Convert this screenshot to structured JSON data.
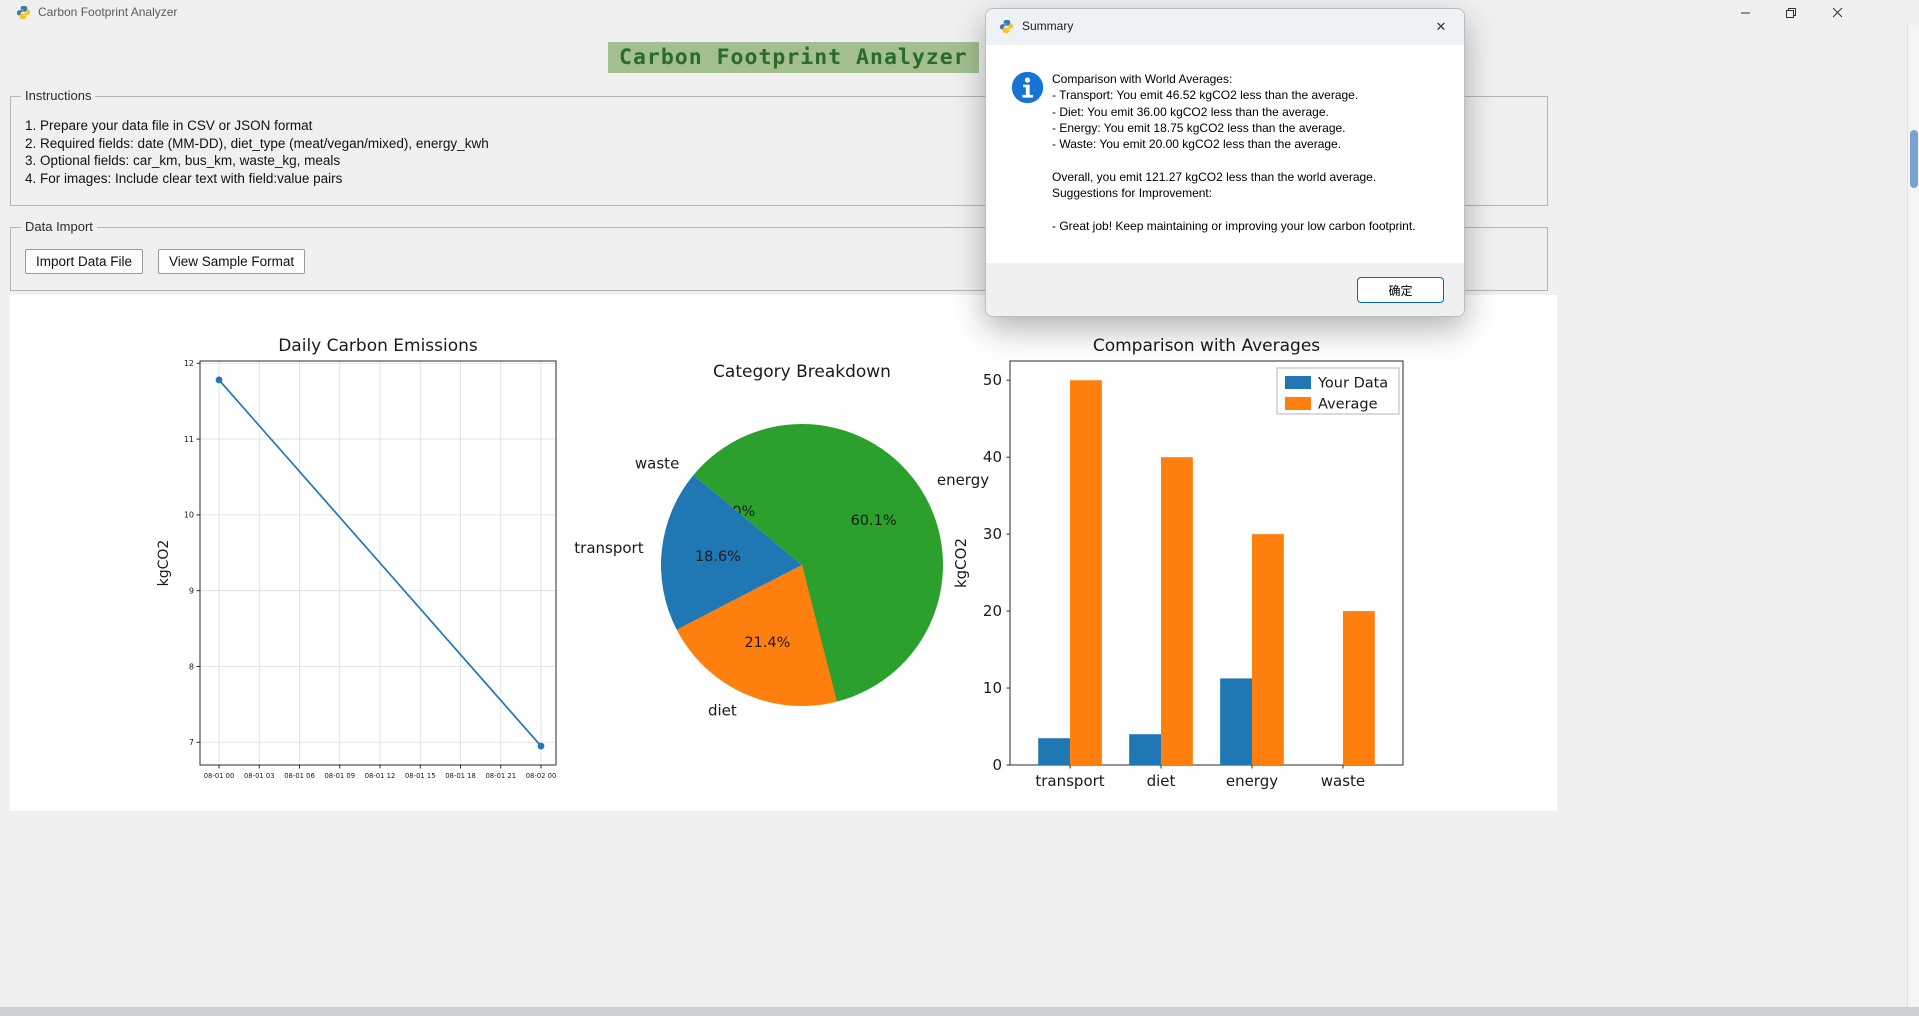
{
  "window": {
    "title": "Carbon Footprint Analyzer"
  },
  "icons": {
    "app": "python-icon",
    "window_controls": [
      "minimize-icon",
      "restore-icon",
      "close-icon"
    ],
    "dialog": "info-icon",
    "dialog_close_glyph": "✕"
  },
  "main": {
    "heading": "Carbon Footprint Analyzer",
    "instructions": {
      "label": "Instructions",
      "items": [
        "1. Prepare your data file in CSV or JSON format",
        "2. Required fields: date (MM-DD), diet_type (meat/vegan/mixed), energy_kwh",
        "3. Optional fields: car_km, bus_km, waste_kg, meals",
        "4. For images: Include clear text with field:value pairs"
      ]
    },
    "data_import": {
      "label": "Data Import",
      "import_button": "Import Data File",
      "sample_button": "View Sample Format"
    }
  },
  "dialog": {
    "title": "Summary",
    "close": "✕",
    "lines": [
      "Comparison with World Averages:",
      "- Transport: You emit 46.52 kgCO2 less than the average.",
      "- Diet: You emit 36.00 kgCO2 less than the average.",
      "- Energy: You emit 18.75 kgCO2 less than the average.",
      "- Waste: You emit 20.00 kgCO2 less than the average.",
      "",
      "Overall, you emit 121.27 kgCO2 less than the world average.",
      "Suggestions for Improvement:",
      "",
      "- Great job! Keep maintaining or improving your low carbon footprint."
    ],
    "ok_button": "确定"
  },
  "chart_data": [
    {
      "type": "line",
      "title": "Daily Carbon Emissions",
      "ylabel": "kgCO2",
      "x_ticks": [
        "08-01 00",
        "08-01 03",
        "08-01 06",
        "08-01 09",
        "08-01 12",
        "08-01 15",
        "08-01 18",
        "08-01 21",
        "08-02 00"
      ],
      "y_ticks": [
        7,
        8,
        9,
        10,
        11,
        12
      ],
      "ylim": [
        6.7,
        12.03
      ],
      "points": [
        {
          "x": "08-01 00",
          "y": 11.78
        },
        {
          "x": "08-02 00",
          "y": 6.95
        }
      ],
      "color": "#1f77b4",
      "grid": true
    },
    {
      "type": "pie",
      "title": "Category Breakdown",
      "start_angle": -76,
      "slices": [
        {
          "label": "energy",
          "pct": 60.1,
          "color": "#2ca02c"
        },
        {
          "label": "waste",
          "pct": 0.0,
          "color": "#d62728"
        },
        {
          "label": "transport",
          "pct": 18.6,
          "color": "#1f77b4"
        },
        {
          "label": "diet",
          "pct": 21.4,
          "color": "#ff7f0e"
        }
      ]
    },
    {
      "type": "bar",
      "title": "Comparison with Averages",
      "ylabel": "kgCO2",
      "categories": [
        "transport",
        "diet",
        "energy",
        "waste"
      ],
      "series": [
        {
          "name": "Your Data",
          "color": "#1f77b4",
          "values": [
            3.48,
            4.0,
            11.25,
            0.0
          ]
        },
        {
          "name": "Average",
          "color": "#ff7f0e",
          "values": [
            50,
            40,
            30,
            20
          ]
        }
      ],
      "y_ticks": [
        0,
        10,
        20,
        30,
        40,
        50
      ],
      "ylim": [
        0,
        52.5
      ],
      "legend_position": "upper right"
    }
  ]
}
